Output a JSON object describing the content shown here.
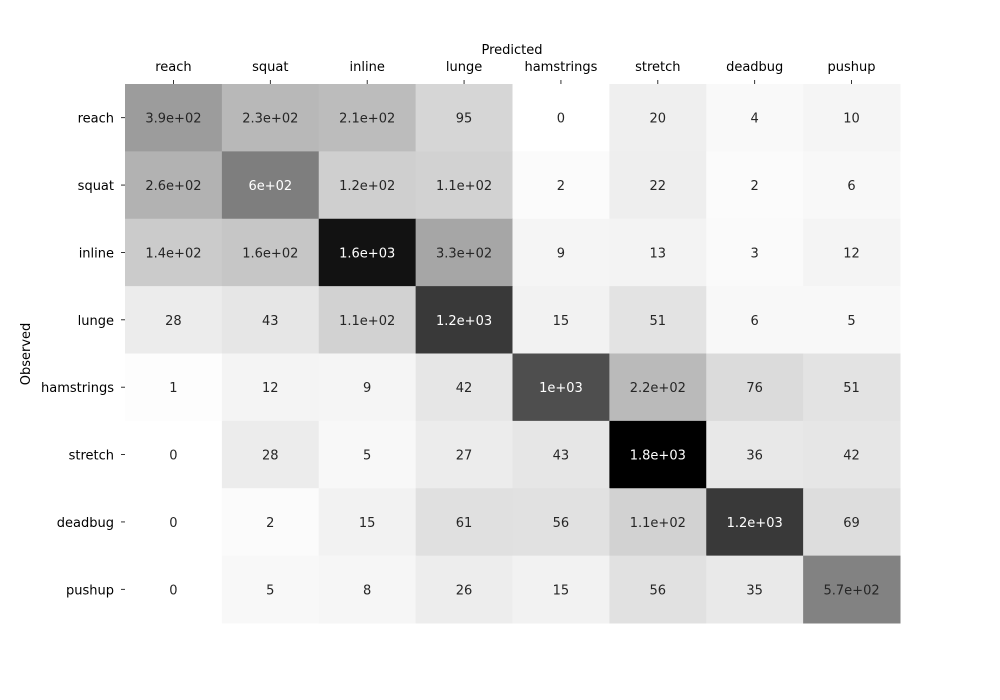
{
  "chart_data": {
    "type": "heatmap",
    "title": "",
    "xlabel": "Predicted",
    "ylabel": "Observed",
    "x_axis_position": "top",
    "colormap": "greys",
    "x_categories": [
      "reach",
      "squat",
      "inline",
      "lunge",
      "hamstrings",
      "stretch",
      "deadbug",
      "pushup"
    ],
    "y_categories": [
      "reach",
      "squat",
      "inline",
      "lunge",
      "hamstrings",
      "stretch",
      "deadbug",
      "pushup"
    ],
    "values": [
      [
        390,
        230,
        210,
        95,
        0,
        20,
        4,
        10
      ],
      [
        260,
        600,
        120,
        110,
        2,
        22,
        2,
        6
      ],
      [
        140,
        160,
        1600,
        330,
        9,
        13,
        3,
        12
      ],
      [
        28,
        43,
        110,
        1200,
        15,
        51,
        6,
        5
      ],
      [
        1,
        12,
        9,
        42,
        1000,
        220,
        76,
        51
      ],
      [
        0,
        28,
        5,
        27,
        43,
        1800,
        36,
        42
      ],
      [
        0,
        2,
        15,
        61,
        56,
        110,
        1200,
        69
      ],
      [
        0,
        5,
        8,
        26,
        15,
        56,
        35,
        570
      ]
    ],
    "annotations": [
      [
        "3.9e+02",
        "2.3e+02",
        "2.1e+02",
        "95",
        "0",
        "20",
        "4",
        "10"
      ],
      [
        "2.6e+02",
        "6e+02",
        "1.2e+02",
        "1.1e+02",
        "2",
        "22",
        "2",
        "6"
      ],
      [
        "1.4e+02",
        "1.6e+02",
        "1.6e+03",
        "3.3e+02",
        "9",
        "13",
        "3",
        "12"
      ],
      [
        "28",
        "43",
        "1.1e+02",
        "1.2e+03",
        "15",
        "51",
        "6",
        "5"
      ],
      [
        "1",
        "12",
        "9",
        "42",
        "1e+03",
        "2.2e+02",
        "76",
        "51"
      ],
      [
        "0",
        "28",
        "5",
        "27",
        "43",
        "1.8e+03",
        "36",
        "42"
      ],
      [
        "0",
        "2",
        "15",
        "61",
        "56",
        "1.1e+02",
        "1.2e+03",
        "69"
      ],
      [
        "0",
        "5",
        "8",
        "26",
        "15",
        "56",
        "35",
        "5.7e+02"
      ]
    ],
    "vmin": 0,
    "vmax": 1800
  }
}
